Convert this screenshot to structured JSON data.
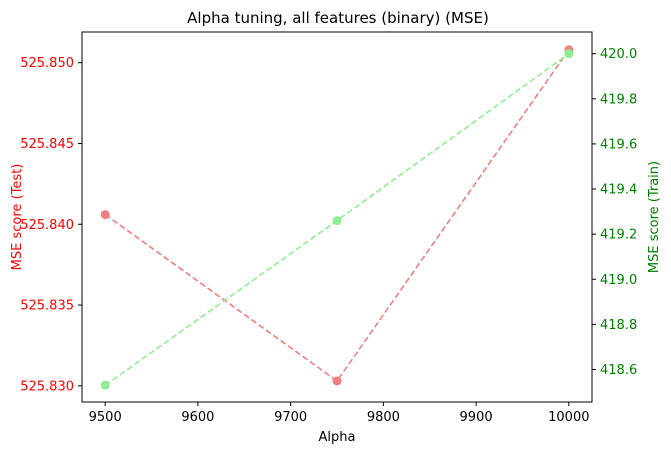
{
  "chart_data": {
    "type": "line",
    "title": "Alpha tuning, all features (binary) (MSE)",
    "xlabel": "Alpha",
    "ylabel_left": "MSE score (Test)",
    "ylabel_right": "MSE score (Train)",
    "x": [
      9500,
      9750,
      10000
    ],
    "xlim": [
      9475,
      10025
    ],
    "xticks": [
      9500,
      9600,
      9700,
      9800,
      9900,
      10000
    ],
    "xtick_labels": [
      "9500",
      "9600",
      "9700",
      "9800",
      "9900",
      "10000"
    ],
    "ylim_left": [
      525.829,
      525.8519
    ],
    "yticks_left": [
      525.83,
      525.835,
      525.84,
      525.845,
      525.85
    ],
    "ytick_labels_left": [
      "525.830",
      "525.835",
      "525.840",
      "525.845",
      "525.850"
    ],
    "ylim_right": [
      418.456,
      420.096
    ],
    "yticks_right": [
      418.6,
      418.8,
      419.0,
      419.2,
      419.4,
      419.6,
      419.8,
      420.0
    ],
    "ytick_labels_right": [
      "418.6",
      "418.8",
      "419.0",
      "419.2",
      "419.4",
      "419.6",
      "419.8",
      "420.0"
    ],
    "grid": false,
    "series": [
      {
        "axis": "left",
        "values": [
          525.8406,
          525.8303,
          525.8508
        ],
        "color": "#f08080",
        "style": "dashed",
        "marker": "circle"
      },
      {
        "axis": "right",
        "values": [
          418.53,
          419.26,
          420.0
        ],
        "color": "#90ee90",
        "style": "dashed",
        "marker": "circle"
      }
    ],
    "colors": {
      "left_axis": "#ff0000",
      "right_axis": "#008000",
      "frame": "#000000"
    }
  }
}
